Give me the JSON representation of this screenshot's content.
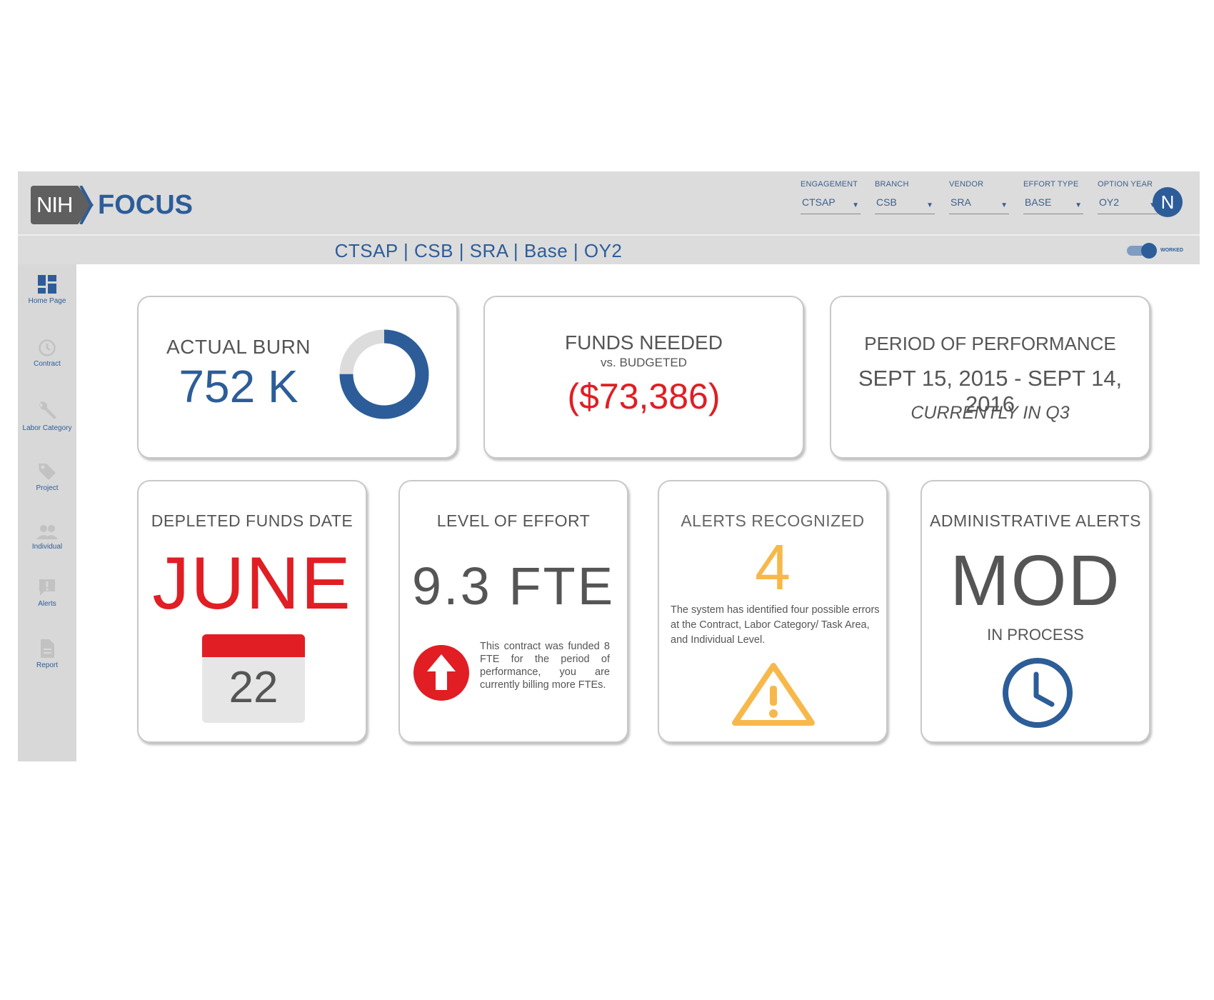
{
  "header": {
    "logo_nih": "NIH",
    "logo_focus": "FOCUS",
    "filters": [
      {
        "label": "ENGAGEMENT",
        "value": "CTSAP"
      },
      {
        "label": "BRANCH",
        "value": "CSB"
      },
      {
        "label": "VENDOR",
        "value": "SRA"
      },
      {
        "label": "EFFORT TYPE",
        "value": "BASE"
      },
      {
        "label": "OPTION YEAR",
        "value": "OY2"
      }
    ],
    "avatar_initial": "N"
  },
  "subbar": {
    "breadcrumb": "CTSAP | CSB | SRA | Base | OY2",
    "toggle_label": "WORKED",
    "toggle_on": true
  },
  "sidebar": {
    "items": [
      {
        "label": "Home Page",
        "icon": "dashboard-icon",
        "active": true
      },
      {
        "label": "Contract",
        "icon": "clock-icon",
        "active": false
      },
      {
        "label": "Labor Category",
        "icon": "wrench-icon",
        "active": false
      },
      {
        "label": "Project",
        "icon": "tag-icon",
        "active": false
      },
      {
        "label": "Individual",
        "icon": "people-icon",
        "active": false
      },
      {
        "label": "Alerts",
        "icon": "alert-icon",
        "active": false
      },
      {
        "label": "Report",
        "icon": "document-icon",
        "active": false
      }
    ]
  },
  "cards": {
    "actual_burn": {
      "title": "ACTUAL BURN",
      "value": "752 K"
    },
    "funds_needed": {
      "title": "FUNDS NEEDED",
      "subtitle": "vs. BUDGETED",
      "value": "($73,386)"
    },
    "period": {
      "title": "PERIOD OF PERFORMANCE",
      "range": "SEPT 15, 2015 - SEPT 14, 2016",
      "status": "CURRENTLY IN Q3"
    },
    "depleted": {
      "title": "DEPLETED FUNDS DATE",
      "month": "JUNE",
      "day": "22"
    },
    "effort": {
      "title": "LEVEL OF EFFORT",
      "value": "9.3 FTE",
      "note": "This contract was funded 8 FTE for the period of performance, you are currently billing more FTEs."
    },
    "alerts": {
      "title": "ALERTS RECOGNIZED",
      "count": "4",
      "note": "The system has identified four possible errors at the Contract, Labor Category/ Task Area, and Individual Level."
    },
    "admin": {
      "title": "ADMINISTRATIVE ALERTS",
      "value": "MOD",
      "status": "IN PROCESS"
    }
  },
  "colors": {
    "primary": "#2c5d99",
    "danger": "#e01e24",
    "warning": "#f7b84b",
    "neutral": "#dcdcdc"
  },
  "actual_burn_ring_fraction": 0.75
}
